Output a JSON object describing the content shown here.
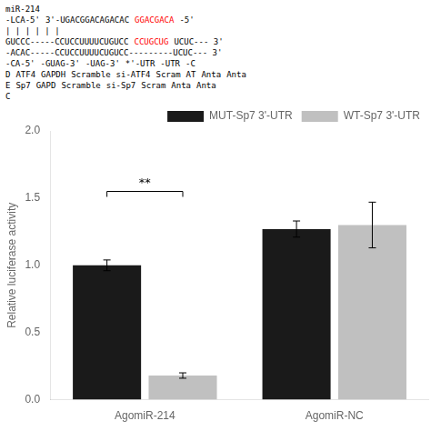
{
  "chart_data": {
    "type": "bar",
    "categories": [
      "AgomiR-214",
      "AgomiR-NC"
    ],
    "series": [
      {
        "name": "MUT-Sp7 3'-UTR",
        "color": "#1a1a1a",
        "values": [
          1.0,
          1.27
        ],
        "errors": [
          0.04,
          0.06
        ]
      },
      {
        "name": "WT-Sp7 3'-UTR",
        "color": "#c0c0c0",
        "values": [
          0.18,
          1.3
        ],
        "errors": [
          0.02,
          0.17
        ]
      }
    ],
    "y_label": "Relative luciferase activity",
    "ylim": [
      0,
      2.0
    ],
    "yticks": [
      {
        "value": 0.0,
        "label": "0.0"
      },
      0.5,
      {
        "value": 1.0,
        "label": "1.0"
      },
      1.5,
      {
        "value": 2.0,
        "label": "2.0"
      }
    ],
    "grid": false,
    "legend": "top right",
    "brackets": [
      {
        "category": "AgomiR-214",
        "y": 1.55,
        "text": "**"
      }
    ],
    "annotations": [
      [
        {
          "text": "miR-214"
        }
      ],
      [
        {
          "text": "-LCA-5'"
        },
        {
          "text": "3'-UGACGGACAGACAC"
        },
        {
          "text": "GGACGACA",
          "color": "red"
        },
        {
          "text": "-5'"
        }
      ],
      [
        {
          "text": "| | | | | |"
        }
      ],
      [
        {
          "text": "GUCCC-----CCUCCUUUUCUGUCC"
        },
        {
          "text": "CCUGCUG",
          "color": "red"
        },
        {
          "text": "UCUC--- 3'"
        }
      ],
      [
        {
          "text": "-ACAC-----CCUCCUUUUCUGUCC---------UCUC--- 3'"
        }
      ],
      [
        {
          "text": "-CA-5'"
        },
        {
          "text": "-GUAG-3'"
        },
        {
          "text": "-UAG-3'"
        },
        {
          "text": "*'-UTR"
        },
        {
          "text": "-UTR"
        },
        {
          "text": "-C"
        }
      ],
      [
        {
          "text": "D"
        },
        {
          "text": "ATF4"
        },
        {
          "text": "GAPDH"
        },
        {
          "text": "Scramble"
        },
        {
          "text": "si-ATF4"
        },
        {
          "text": "Scram"
        },
        {
          "text": "AT"
        },
        {
          "text": "Anta"
        },
        {
          "text": "Anta"
        }
      ],
      [
        {
          "text": "E"
        },
        {
          "text": "Sp7"
        },
        {
          "text": "GAPD"
        },
        {
          "text": "Scramble"
        },
        {
          "text": "si-Sp7"
        },
        {
          "text": "Scram"
        },
        {
          "text": "Anta"
        },
        {
          "text": "Anta"
        }
      ],
      [
        {
          "text": "C"
        }
      ]
    ]
  }
}
